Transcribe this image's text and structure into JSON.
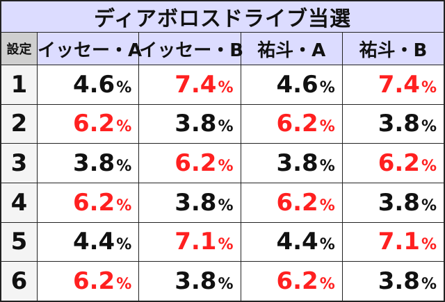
{
  "title": "ディアボロスドライブ当選",
  "headers": [
    "設定",
    "イッセー・A",
    "イッセー・B",
    "祐斗・A",
    "祐斗・B"
  ],
  "colors": {
    "highlight": "#ff2020",
    "normal": "#111111",
    "header_bg": "#dcdcff"
  },
  "rows": [
    {
      "setting": "1",
      "cells": [
        {
          "value": "4.6",
          "unit": "%",
          "highlight": false
        },
        {
          "value": "7.4",
          "unit": "%",
          "highlight": true
        },
        {
          "value": "4.6",
          "unit": "%",
          "highlight": false
        },
        {
          "value": "7.4",
          "unit": "%",
          "highlight": true
        }
      ]
    },
    {
      "setting": "2",
      "cells": [
        {
          "value": "6.2",
          "unit": "%",
          "highlight": true
        },
        {
          "value": "3.8",
          "unit": "%",
          "highlight": false
        },
        {
          "value": "6.2",
          "unit": "%",
          "highlight": true
        },
        {
          "value": "3.8",
          "unit": "%",
          "highlight": false
        }
      ]
    },
    {
      "setting": "3",
      "cells": [
        {
          "value": "3.8",
          "unit": "%",
          "highlight": false
        },
        {
          "value": "6.2",
          "unit": "%",
          "highlight": true
        },
        {
          "value": "3.8",
          "unit": "%",
          "highlight": false
        },
        {
          "value": "6.2",
          "unit": "%",
          "highlight": true
        }
      ]
    },
    {
      "setting": "4",
      "cells": [
        {
          "value": "6.2",
          "unit": "%",
          "highlight": true
        },
        {
          "value": "3.8",
          "unit": "%",
          "highlight": false
        },
        {
          "value": "6.2",
          "unit": "%",
          "highlight": true
        },
        {
          "value": "3.8",
          "unit": "%",
          "highlight": false
        }
      ]
    },
    {
      "setting": "5",
      "cells": [
        {
          "value": "4.4",
          "unit": "%",
          "highlight": false
        },
        {
          "value": "7.1",
          "unit": "%",
          "highlight": true
        },
        {
          "value": "4.4",
          "unit": "%",
          "highlight": false
        },
        {
          "value": "7.1",
          "unit": "%",
          "highlight": true
        }
      ]
    },
    {
      "setting": "6",
      "cells": [
        {
          "value": "6.2",
          "unit": "%",
          "highlight": true
        },
        {
          "value": "3.8",
          "unit": "%",
          "highlight": false
        },
        {
          "value": "6.2",
          "unit": "%",
          "highlight": true
        },
        {
          "value": "3.8",
          "unit": "%",
          "highlight": false
        }
      ]
    }
  ]
}
